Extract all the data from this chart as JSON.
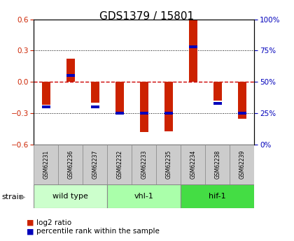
{
  "title": "GDS1379 / 15801",
  "samples": [
    "GSM62231",
    "GSM62236",
    "GSM62237",
    "GSM62232",
    "GSM62233",
    "GSM62235",
    "GSM62234",
    "GSM62238",
    "GSM62239"
  ],
  "log2_ratio": [
    -0.22,
    0.22,
    -0.2,
    -0.3,
    -0.48,
    -0.47,
    0.6,
    -0.18,
    -0.35
  ],
  "percentile_rank": [
    30,
    55,
    30,
    25,
    25,
    25,
    78,
    33,
    25
  ],
  "groups": [
    {
      "label": "wild type",
      "start": 0,
      "end": 3,
      "color": "#ccffcc"
    },
    {
      "label": "vhl-1",
      "start": 3,
      "end": 6,
      "color": "#aaffaa"
    },
    {
      "label": "hif-1",
      "start": 6,
      "end": 9,
      "color": "#44dd44"
    }
  ],
  "ylim": [
    -0.6,
    0.6
  ],
  "yticks": [
    -0.6,
    -0.3,
    0.0,
    0.3,
    0.6
  ],
  "right_yticks": [
    0,
    25,
    50,
    75,
    100
  ],
  "bar_color_red": "#cc2200",
  "bar_color_blue": "#0000bb",
  "bar_width": 0.35,
  "zero_line_color": "#cc0000",
  "grid_color": "#000000",
  "tick_label_color_left": "#cc2200",
  "tick_label_color_right": "#0000bb"
}
